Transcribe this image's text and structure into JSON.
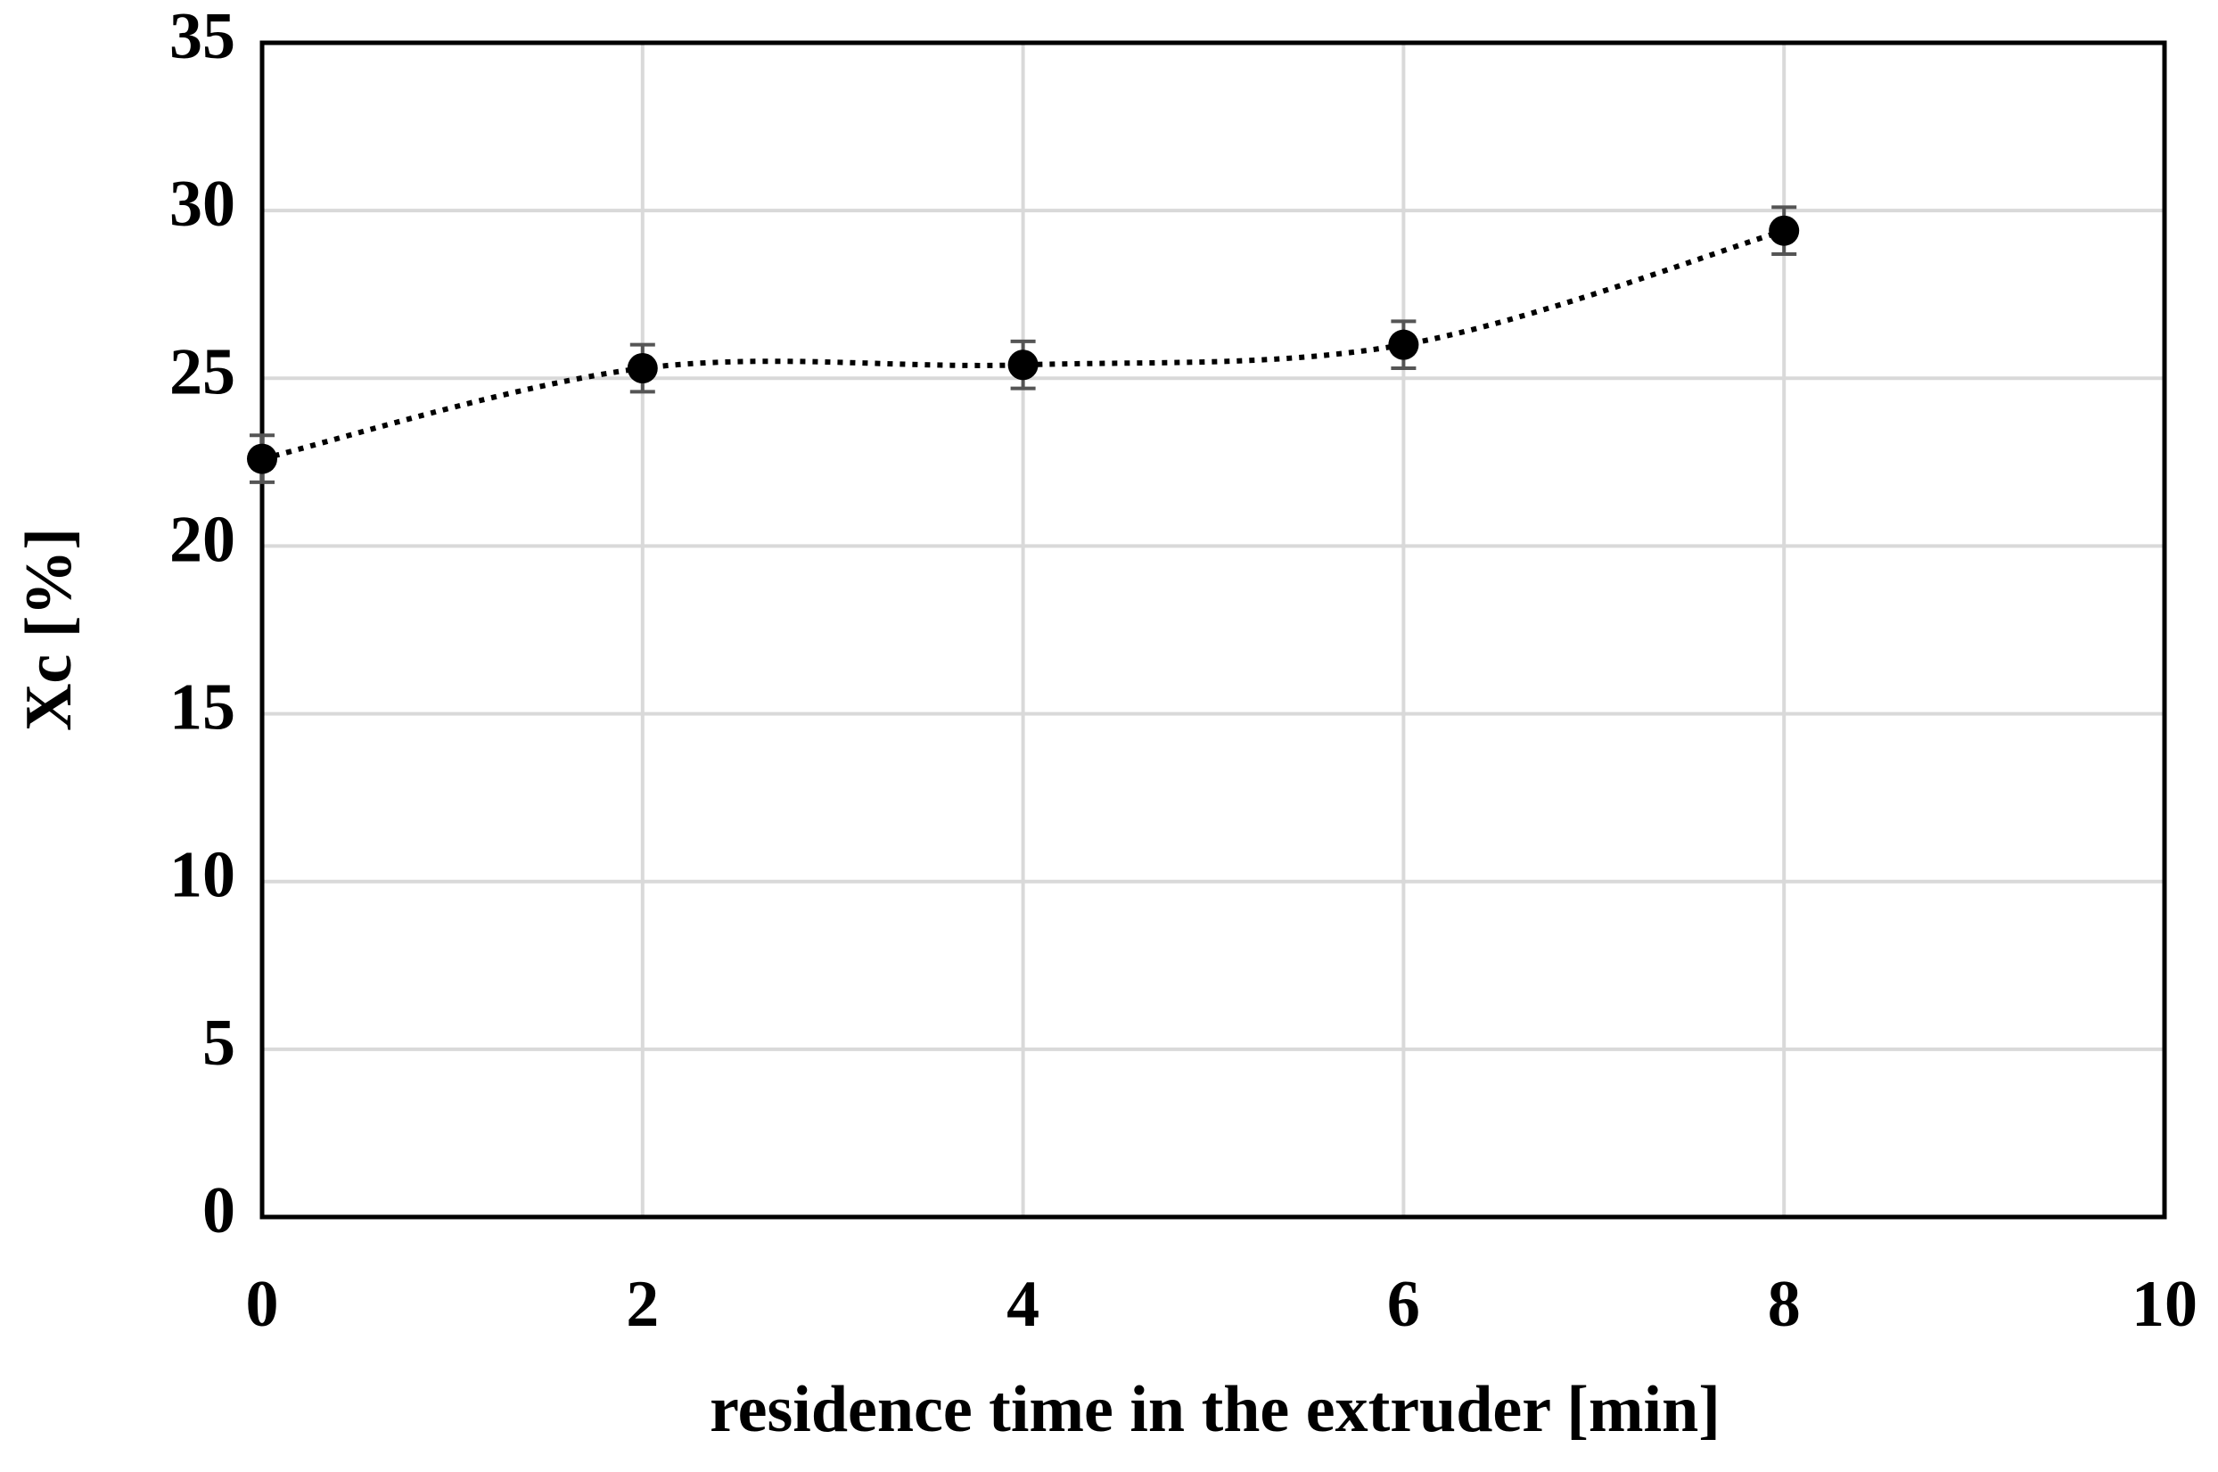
{
  "chart_data": {
    "type": "scatter",
    "x_label": "residence time in the extruder [min]",
    "y_label": "Xc [%]",
    "x": [
      0,
      2,
      4,
      6,
      8
    ],
    "series": [
      {
        "color": "#000000",
        "values": [
          22.6,
          25.3,
          25.4,
          26.0,
          29.4
        ],
        "errors": [
          0.7,
          0.7,
          0.7,
          0.7,
          0.7
        ]
      }
    ],
    "xlim": [
      0,
      10
    ],
    "xticks": [
      0,
      2,
      4,
      6,
      8,
      10
    ],
    "ylim": [
      0,
      35
    ],
    "yticks": [
      0,
      5,
      10,
      15,
      20,
      25,
      30,
      35
    ],
    "grid": true,
    "line_style": "dotted"
  }
}
